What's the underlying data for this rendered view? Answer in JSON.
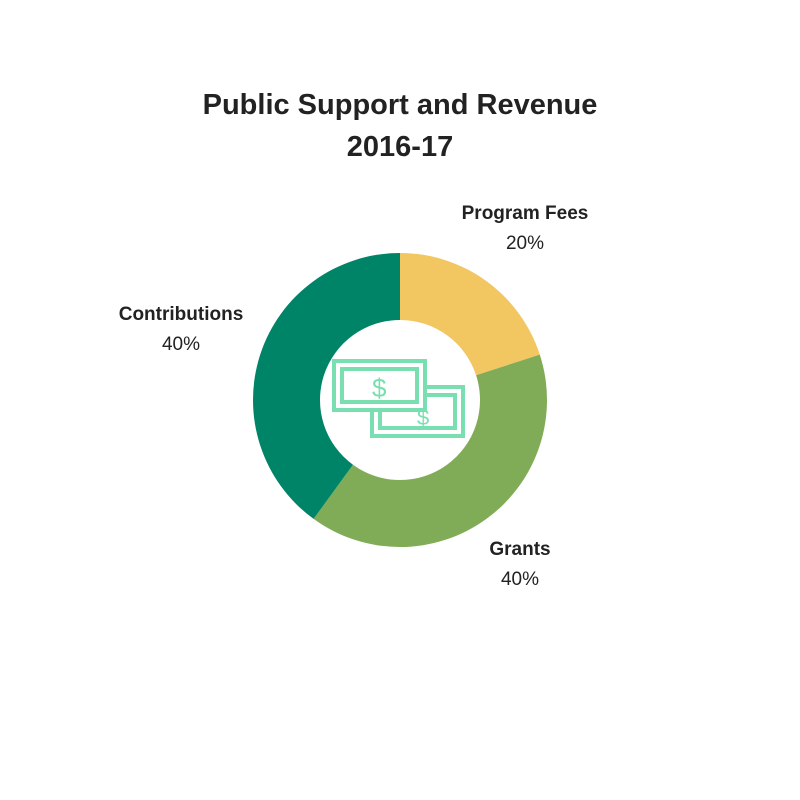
{
  "title": {
    "line1": "Public Support and Revenue",
    "line2": "2016-17"
  },
  "icon": "dollar-bills-icon",
  "colors": {
    "program_fees": "#F2C660",
    "grants": "#80AC57",
    "contributions": "#008467",
    "icon": "#7ADFB0"
  },
  "chart_data": {
    "type": "pie",
    "donut": true,
    "title": "Public Support and Revenue 2016-17",
    "slices": [
      {
        "name": "Program Fees",
        "value": 20,
        "display": "20%",
        "color": "#F2C660",
        "label_side": "top-right"
      },
      {
        "name": "Grants",
        "value": 40,
        "display": "40%",
        "color": "#80AC57",
        "label_side": "bottom-right"
      },
      {
        "name": "Contributions",
        "value": 40,
        "display": "40%",
        "color": "#008467",
        "label_side": "left"
      }
    ]
  }
}
